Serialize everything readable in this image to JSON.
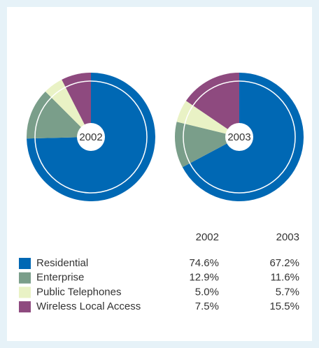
{
  "chart_data": {
    "type": "pie",
    "categories": [
      "Residential",
      "Enterprise",
      "Public Telephones",
      "Wireless Local Access"
    ],
    "colors": [
      "#0068b4",
      "#7a9e8a",
      "#e9f2c5",
      "#8e4a7f"
    ],
    "series": [
      {
        "name": "2002",
        "values": [
          74.6,
          12.9,
          5.0,
          7.5
        ],
        "value_labels": [
          "74.6%",
          "12.9%",
          "5.0%",
          "7.5%"
        ]
      },
      {
        "name": "2003",
        "values": [
          67.2,
          11.6,
          5.7,
          15.5
        ],
        "value_labels": [
          "67.2%",
          "11.6%",
          "5.7%",
          "15.5%"
        ]
      }
    ]
  }
}
